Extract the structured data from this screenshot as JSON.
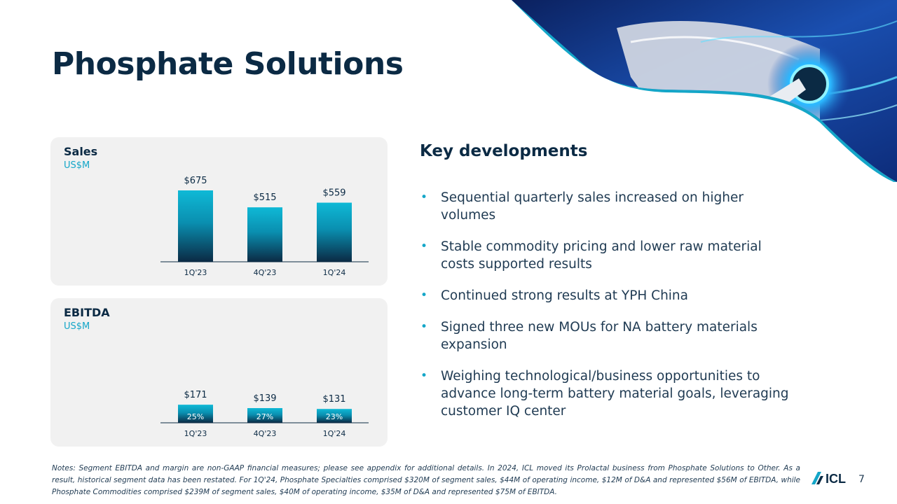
{
  "title": "Phosphate Solutions",
  "colors": {
    "accent": "#14a6c8",
    "navy": "#0b2a44",
    "panel_bg": "#f1f1f1"
  },
  "hero_image": {
    "icon": "ev-charger-icon"
  },
  "key_developments": {
    "title": "Key developments",
    "bullets": [
      "Sequential quarterly sales increased on higher volumes",
      "Stable commodity pricing and lower raw material costs supported results",
      "Continued strong results at YPH China",
      "Signed three new MOUs for NA battery materials expansion",
      "Weighing technological/business opportunities to advance long-term battery material goals, leveraging customer IQ center"
    ]
  },
  "chart_data": [
    {
      "type": "bar",
      "title": "Sales",
      "ylabel": "US$M",
      "categories": [
        "1Q'23",
        "4Q'23",
        "1Q'24"
      ],
      "values": [
        675,
        515,
        559
      ],
      "value_labels": [
        "$675",
        "$515",
        "$559"
      ],
      "ylim": [
        0,
        675
      ]
    },
    {
      "type": "bar",
      "title": "EBITDA",
      "ylabel": "US$M",
      "categories": [
        "1Q'23",
        "4Q'23",
        "1Q'24"
      ],
      "values": [
        171,
        139,
        131
      ],
      "value_labels": [
        "$171",
        "$139",
        "$131"
      ],
      "margins": [
        "25%",
        "27%",
        "23%"
      ],
      "ylim": [
        0,
        675
      ]
    }
  ],
  "notes": "Notes: Segment EBITDA and margin are non-GAAP financial measures; please see appendix for additional details. In 2024, ICL moved its Prolactal business from Phosphate Solutions to Other. As a result, historical segment data has been restated. For 1Q'24, Phosphate Specialties comprised $320M of segment sales, $44M of operating income, $12M of D&A and represented $56M of EBITDA, while Phosphate Commodities comprised $239M of segment sales, $40M of operating income, $35M of D&A and represented $75M of EBITDA.",
  "logo": {
    "text": "ICL",
    "icon": "icl-logo-icon"
  },
  "page_number": "7"
}
